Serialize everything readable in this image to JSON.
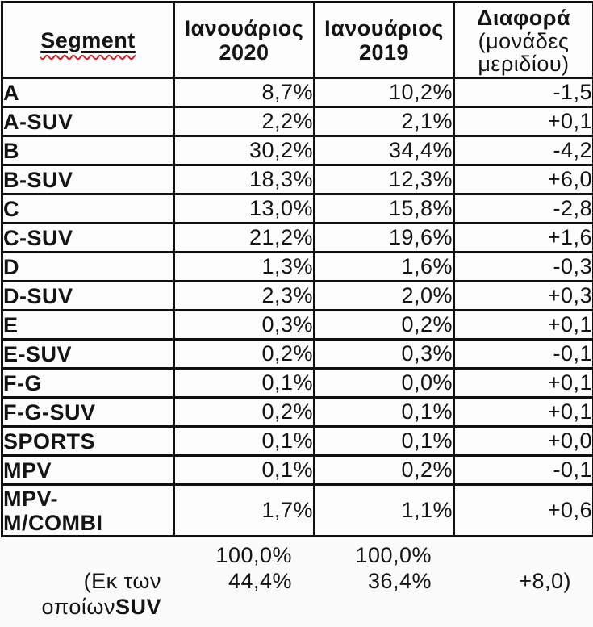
{
  "colors": {
    "border": "#101010",
    "squiggle_red": "#c0282d",
    "background": "#fbfbfb",
    "text": "#141414"
  },
  "table": {
    "header": {
      "segment": "Segment",
      "col2020_line1": "Ιανουάριος",
      "col2020_line2": "2020",
      "col2019_line1": "Ιανουάριος",
      "col2019_line2": "2019",
      "diff_line1": "Διαφορά",
      "diff_line2": "(μονάδες",
      "diff_line3": "μεριδίου)"
    },
    "rows": [
      {
        "segment": "A",
        "jan2020": "8,7%",
        "jan2019": "10,2%",
        "diff": "-1,5"
      },
      {
        "segment": "A-SUV",
        "jan2020": "2,2%",
        "jan2019": "2,1%",
        "diff": "+0,1"
      },
      {
        "segment": "B",
        "jan2020": "30,2%",
        "jan2019": "34,4%",
        "diff": "-4,2"
      },
      {
        "segment": "B-SUV",
        "jan2020": "18,3%",
        "jan2019": "12,3%",
        "diff": "+6,0"
      },
      {
        "segment": "C",
        "jan2020": "13,0%",
        "jan2019": "15,8%",
        "diff": "-2,8"
      },
      {
        "segment": "C-SUV",
        "jan2020": "21,2%",
        "jan2019": "19,6%",
        "diff": "+1,6"
      },
      {
        "segment": "D",
        "jan2020": "1,3%",
        "jan2019": "1,6%",
        "diff": "-0,3"
      },
      {
        "segment": "D-SUV",
        "jan2020": "2,3%",
        "jan2019": "2,0%",
        "diff": "+0,3"
      },
      {
        "segment": "E",
        "jan2020": "0,3%",
        "jan2019": "0,2%",
        "diff": "+0,1"
      },
      {
        "segment": "E-SUV",
        "jan2020": "0,2%",
        "jan2019": "0,3%",
        "diff": "-0,1"
      },
      {
        "segment": "F-G",
        "jan2020": "0,1%",
        "jan2019": "0,0%",
        "diff": "+0,1"
      },
      {
        "segment": "F-G-SUV",
        "jan2020": "0,2%",
        "jan2019": "0,1%",
        "diff": "+0,1"
      },
      {
        "segment": "SPORTS",
        "jan2020": "0,1%",
        "jan2019": "0,1%",
        "diff": "+0,0"
      },
      {
        "segment": "MPV",
        "jan2020": "0,1%",
        "jan2019": "0,2%",
        "diff": "-0,1"
      },
      {
        "segment": "MPV-\nM/COMBI",
        "jan2020": "1,7%",
        "jan2019": "1,1%",
        "diff": "+0,6"
      }
    ]
  },
  "footer": {
    "total_2020": "100,0%",
    "total_2019": "100,0%",
    "note_line1": "(Εκ των",
    "note_line2_prefix": "οποίων",
    "note_line2_bold": "SUV",
    "suv_2020": "44,4%",
    "suv_2019": "36,4%",
    "suv_diff": "+8,0)"
  }
}
